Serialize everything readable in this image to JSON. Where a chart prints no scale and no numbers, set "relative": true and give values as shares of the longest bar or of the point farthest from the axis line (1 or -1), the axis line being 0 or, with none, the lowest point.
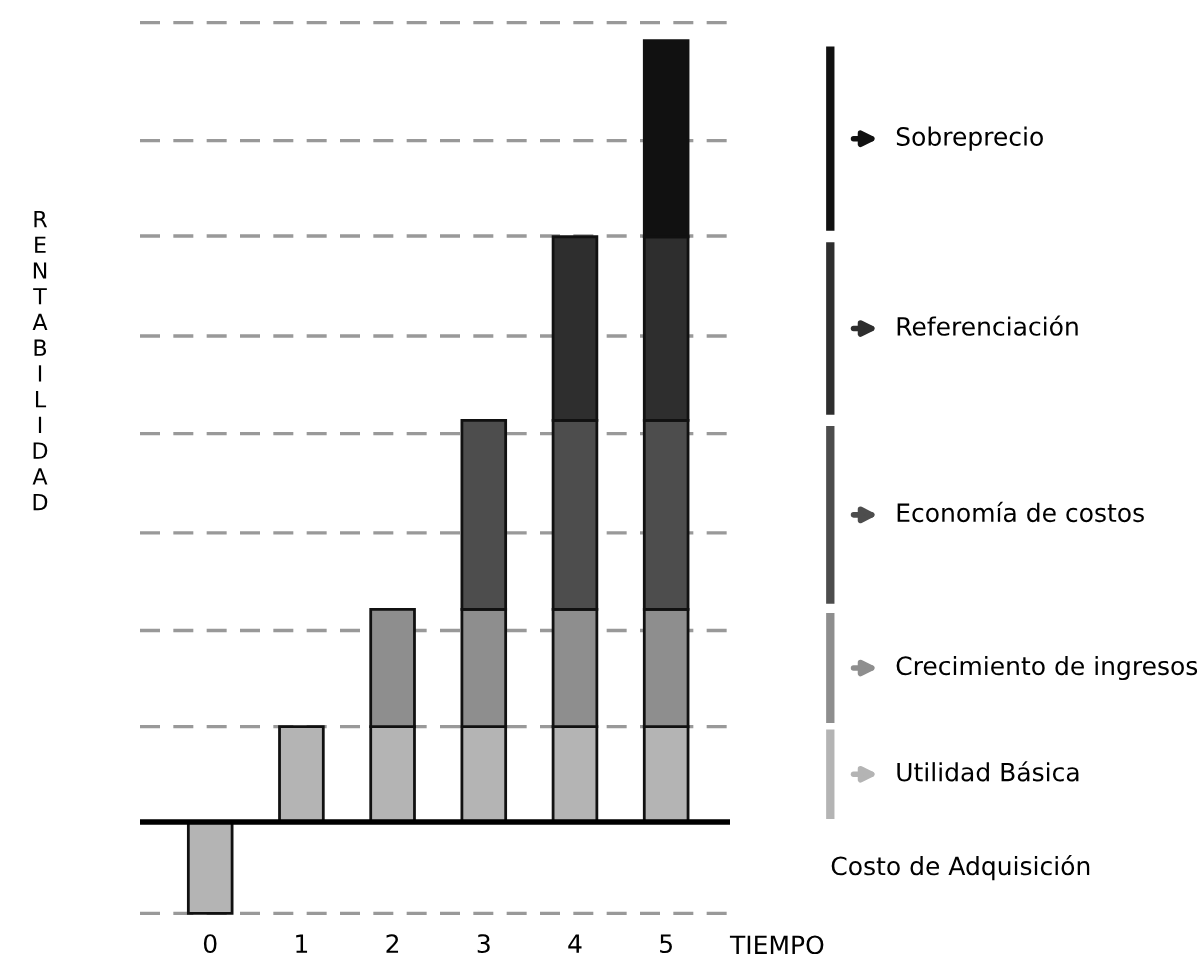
{
  "chart_data": {
    "type": "bar",
    "stacked": true,
    "legend": "right",
    "relative": true,
    "xlabel": "TIEMPO",
    "ylabel": "RENTABILIDAD",
    "categories": [
      "0",
      "1",
      "2",
      "3",
      "4",
      "5"
    ],
    "series": [
      {
        "name": "Costo de Adquisición",
        "color": "#b4b4b4",
        "values": [
          -0.117,
          null,
          null,
          null,
          null,
          null
        ]
      },
      {
        "name": "Utilidad Básica",
        "color": "#b4b4b4",
        "values": [
          null,
          0.122,
          0.122,
          0.122,
          0.122,
          0.122
        ]
      },
      {
        "name": "Crecimiento de ingresos",
        "color": "#8e8e8e",
        "values": [
          null,
          null,
          0.15,
          0.15,
          0.15,
          0.15
        ]
      },
      {
        "name": "Economía de costos",
        "color": "#4d4d4d",
        "values": [
          null,
          null,
          null,
          0.242,
          0.242,
          0.242
        ]
      },
      {
        "name": "Referenciación",
        "color": "#2e2e2e",
        "values": [
          null,
          null,
          null,
          null,
          0.235,
          0.235
        ]
      },
      {
        "name": "Sobreprecio",
        "color": "#111111",
        "values": [
          null,
          null,
          null,
          null,
          null,
          0.251
        ]
      }
    ],
    "ref_lines": [
      {
        "axis": "y",
        "value": 1.023,
        "color": "#999999",
        "line_style": "dashed"
      },
      {
        "axis": "y",
        "value": 0.872,
        "color": "#999999",
        "line_style": "dashed"
      },
      {
        "axis": "y",
        "value": 0.75,
        "color": "#999999",
        "line_style": "dashed"
      },
      {
        "axis": "y",
        "value": 0.622,
        "color": "#999999",
        "line_style": "dashed"
      },
      {
        "axis": "y",
        "value": 0.497,
        "color": "#999999",
        "line_style": "dashed"
      },
      {
        "axis": "y",
        "value": 0.37,
        "color": "#999999",
        "line_style": "dashed"
      },
      {
        "axis": "y",
        "value": 0.245,
        "color": "#999999",
        "line_style": "dashed"
      },
      {
        "axis": "y",
        "value": 0.122,
        "color": "#999999",
        "line_style": "dashed"
      },
      {
        "axis": "y",
        "value": -0.117,
        "color": "#999999",
        "line_style": "dashed"
      }
    ]
  }
}
